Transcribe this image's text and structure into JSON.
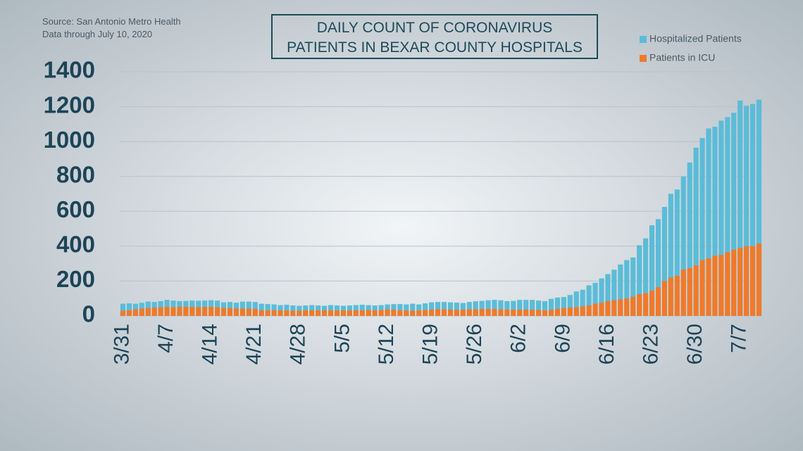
{
  "chart_data": {
    "type": "bar",
    "title": [
      "DAILY COUNT OF CORONAVIRUS",
      "PATIENTS IN BEXAR COUNTY HOSPITALS"
    ],
    "notes": [
      "Source: San Antonio Metro Health",
      "Data through July 10, 2020"
    ],
    "categories": [
      "3/31",
      null,
      null,
      null,
      null,
      null,
      null,
      "4/7",
      null,
      null,
      null,
      null,
      null,
      null,
      "4/14",
      null,
      null,
      null,
      null,
      null,
      null,
      "4/21",
      null,
      null,
      null,
      null,
      null,
      null,
      "4/28",
      null,
      null,
      null,
      null,
      null,
      null,
      "5/5",
      null,
      null,
      null,
      null,
      null,
      null,
      "5/12",
      null,
      null,
      null,
      null,
      null,
      null,
      "5/19",
      null,
      null,
      null,
      null,
      null,
      null,
      "5/26",
      null,
      null,
      null,
      null,
      null,
      null,
      "6/2",
      null,
      null,
      null,
      null,
      null,
      null,
      "6/9",
      null,
      null,
      null,
      null,
      null,
      null,
      "6/16",
      null,
      null,
      null,
      null,
      null,
      null,
      "6/23",
      null,
      null,
      null,
      null,
      null,
      null,
      "6/30",
      null,
      null,
      null,
      null,
      null,
      null,
      "7/7",
      null,
      null,
      null
    ],
    "series": [
      {
        "name": "Hospitalized Patients",
        "color": "#5bbcd8",
        "values": [
          70,
          72,
          70,
          75,
          82,
          80,
          85,
          92,
          88,
          85,
          86,
          88,
          87,
          88,
          90,
          88,
          78,
          80,
          76,
          82,
          82,
          80,
          70,
          68,
          66,
          62,
          64,
          60,
          58,
          60,
          62,
          60,
          58,
          62,
          60,
          58,
          60,
          62,
          64,
          62,
          60,
          62,
          66,
          68,
          68,
          66,
          70,
          66,
          72,
          78,
          80,
          80,
          78,
          76,
          74,
          80,
          84,
          86,
          90,
          92,
          90,
          85,
          86,
          92,
          92,
          92,
          88,
          85,
          98,
          105,
          108,
          120,
          140,
          150,
          175,
          190,
          215,
          240,
          265,
          295,
          320,
          335,
          405,
          445,
          520,
          555,
          625,
          700,
          725,
          800,
          880,
          965,
          1020,
          1075,
          1085,
          1120,
          1140,
          1165,
          1235,
          1205,
          1215,
          1240
        ]
      },
      {
        "name": "Patients in ICU",
        "color": "#f07a2a",
        "values": [
          30,
          32,
          38,
          42,
          45,
          48,
          50,
          52,
          50,
          52,
          52,
          52,
          50,
          52,
          52,
          50,
          45,
          45,
          42,
          42,
          42,
          40,
          32,
          32,
          32,
          32,
          32,
          30,
          30,
          32,
          32,
          32,
          32,
          32,
          32,
          32,
          32,
          32,
          32,
          34,
          32,
          34,
          38,
          36,
          32,
          32,
          30,
          32,
          34,
          36,
          38,
          38,
          36,
          36,
          36,
          38,
          38,
          40,
          40,
          40,
          38,
          36,
          36,
          36,
          36,
          36,
          34,
          32,
          35,
          40,
          45,
          48,
          50,
          55,
          60,
          70,
          75,
          85,
          90,
          95,
          100,
          110,
          125,
          130,
          145,
          165,
          200,
          220,
          230,
          265,
          275,
          290,
          320,
          330,
          345,
          350,
          365,
          380,
          390,
          400,
          400,
          415
        ]
      }
    ],
    "ylim": [
      0,
      1400
    ],
    "yticks": [
      0,
      200,
      400,
      600,
      800,
      1000,
      1200,
      1400
    ],
    "grid": true
  }
}
